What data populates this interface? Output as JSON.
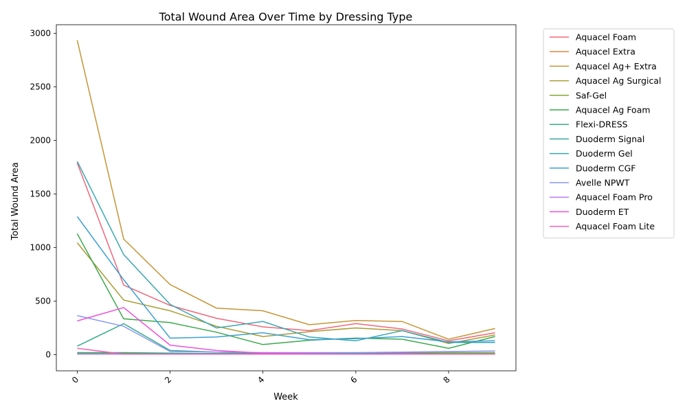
{
  "chart_data": {
    "type": "line",
    "title": "Total Wound Area Over Time by Dressing Type",
    "xlabel": "Week",
    "ylabel": "Total Wound Area",
    "xlim": [
      -0.45,
      9.45
    ],
    "ylim": [
      -150,
      3080
    ],
    "x_ticks": [
      0,
      2,
      4,
      6,
      8
    ],
    "y_ticks": [
      0,
      500,
      1000,
      1500,
      2000,
      2500,
      3000
    ],
    "legend_position": "upper-right-outside",
    "grid": false,
    "x": [
      0,
      1,
      2,
      3,
      4,
      5,
      6,
      7,
      8,
      9
    ],
    "series": [
      {
        "name": "Aquacel Foam",
        "color": "#f0677a",
        "values": [
          1790,
          650,
          460,
          340,
          260,
          225,
          290,
          240,
          130,
          205
        ]
      },
      {
        "name": "Aquacel Extra",
        "color": "#e8833b",
        "values": [
          5,
          5,
          5,
          5,
          5,
          5,
          5,
          5,
          5,
          5
        ]
      },
      {
        "name": "Aquacel Ag+ Extra",
        "color": "#c69434",
        "values": [
          2935,
          1080,
          655,
          435,
          410,
          280,
          320,
          310,
          145,
          245
        ]
      },
      {
        "name": "Aquacel Ag Surgical",
        "color": "#a99b33",
        "values": [
          1045,
          510,
          410,
          265,
          170,
          215,
          250,
          225,
          105,
          185
        ]
      },
      {
        "name": "Saf-Gel",
        "color": "#85a732",
        "values": [
          15,
          15,
          12,
          12,
          12,
          12,
          12,
          20,
          20,
          20
        ]
      },
      {
        "name": "Aquacel Ag Foam",
        "color": "#39a84a",
        "values": [
          1130,
          335,
          300,
          210,
          95,
          135,
          155,
          145,
          60,
          170
        ]
      },
      {
        "name": "Flexi-DRESS",
        "color": "#35aa88",
        "values": [
          80,
          290,
          40,
          25,
          15,
          15,
          15,
          15,
          10,
          10
        ]
      },
      {
        "name": "Duoderm Signal",
        "color": "#36a89e",
        "values": [
          20,
          20,
          15,
          10,
          10,
          10,
          10,
          10,
          5,
          5
        ]
      },
      {
        "name": "Duoderm Gel",
        "color": "#38a5b1",
        "values": [
          1805,
          935,
          470,
          250,
          310,
          165,
          130,
          225,
          115,
          115
        ]
      },
      {
        "name": "Duoderm CGF",
        "color": "#3aa0d2",
        "values": [
          1290,
          700,
          155,
          165,
          205,
          140,
          150,
          170,
          120,
          130
        ]
      },
      {
        "name": "Avelle NPWT",
        "color": "#8897f4",
        "values": [
          365,
          265,
          30,
          25,
          20,
          20,
          20,
          25,
          30,
          35
        ]
      },
      {
        "name": "Aquacel Foam Pro",
        "color": "#bb7cf2",
        "values": [
          5,
          5,
          5,
          5,
          5,
          5,
          5,
          5,
          5,
          5
        ]
      },
      {
        "name": "Duoderm ET",
        "color": "#ee4fdc",
        "values": [
          315,
          440,
          90,
          40,
          15,
          10,
          5,
          10,
          5,
          5
        ]
      },
      {
        "name": "Aquacel Foam Lite",
        "color": "#f260b3",
        "values": [
          60,
          5,
          5,
          5,
          5,
          5,
          5,
          5,
          5,
          5
        ]
      }
    ]
  }
}
